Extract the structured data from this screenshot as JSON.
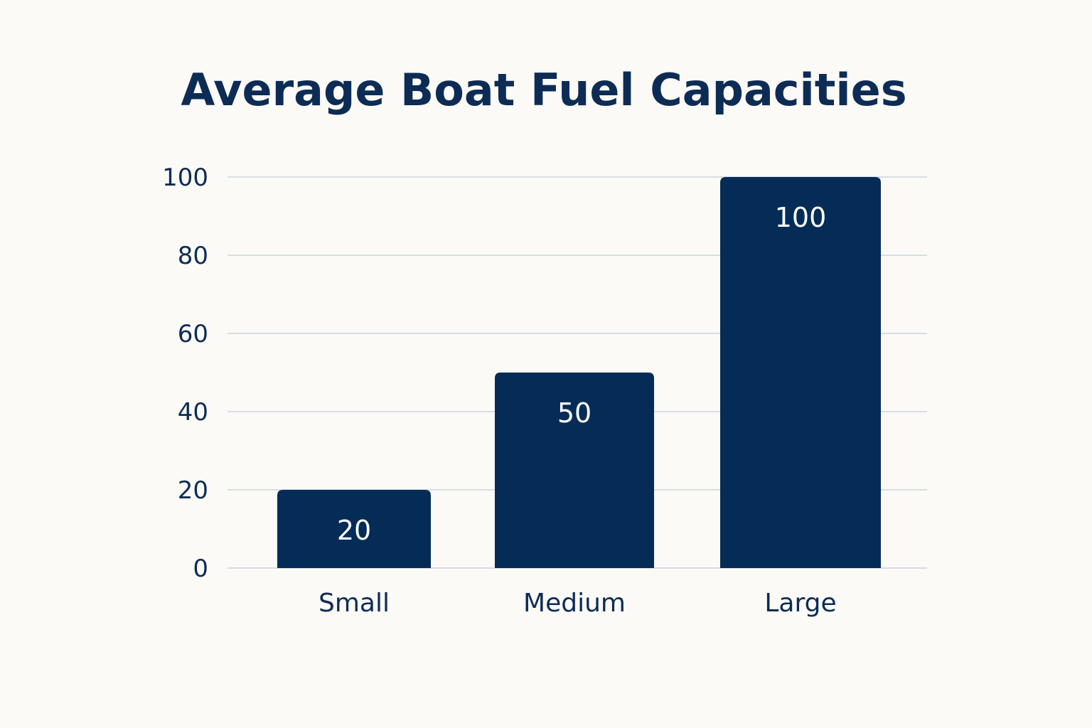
{
  "chart_data": {
    "type": "bar",
    "title": "Average Boat Fuel Capacities",
    "categories": [
      "Small",
      "Medium",
      "Large"
    ],
    "values": [
      20,
      50,
      100
    ],
    "data_labels": [
      "20",
      "50",
      "100"
    ],
    "ylim": [
      0,
      100
    ],
    "yticks": [
      0,
      20,
      40,
      60,
      80,
      100
    ],
    "ytick_labels": [
      "0",
      "20",
      "40",
      "60",
      "80",
      "100"
    ],
    "grid": true,
    "legend": "none",
    "colors": {
      "bar": "#042c57",
      "background": "#fbfaf6",
      "text": "#0d2c55",
      "grid": "#d8dde3",
      "data_label": "#ffffff"
    }
  }
}
